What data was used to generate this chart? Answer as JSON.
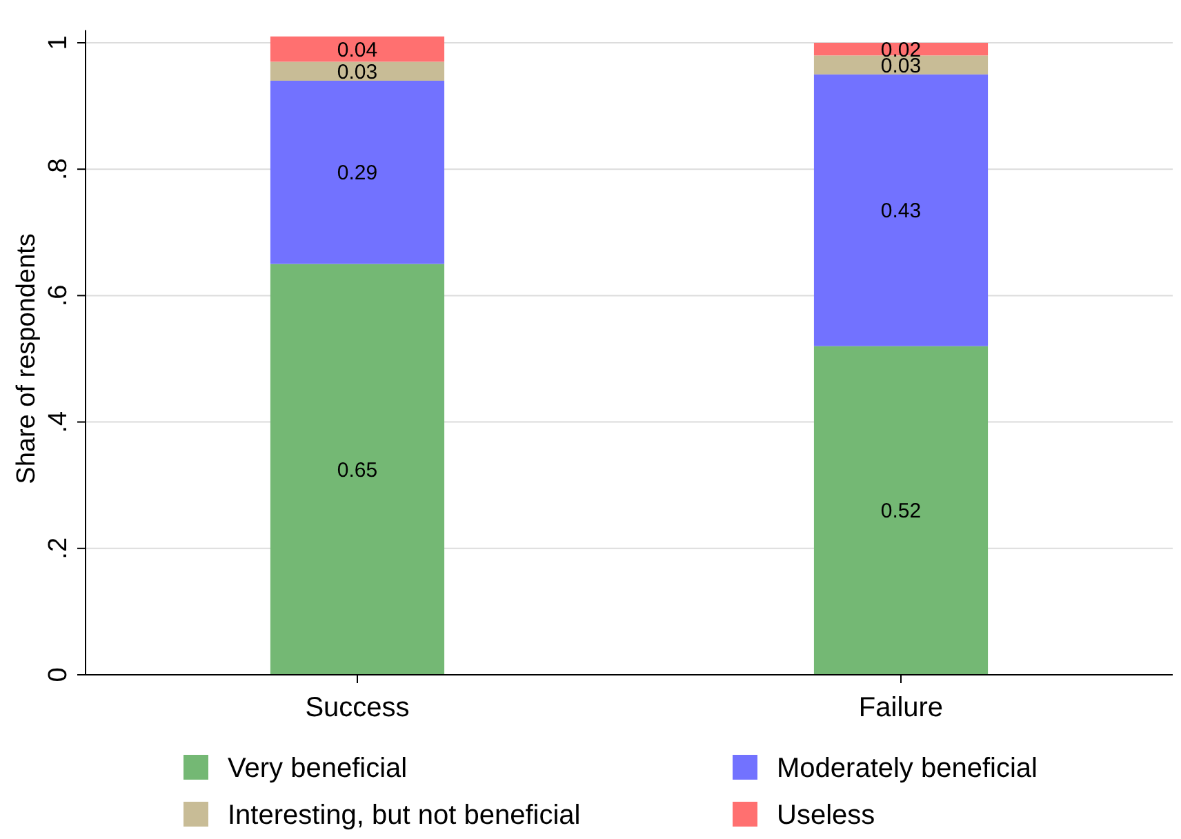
{
  "chart_data": {
    "type": "bar",
    "stacked": true,
    "ylabel": "Share of respondents",
    "categories": [
      "Success",
      "Failure"
    ],
    "series": [
      {
        "name": "Very beneficial",
        "color": "#74b874",
        "values": [
          0.65,
          0.52
        ]
      },
      {
        "name": "Moderately beneficial",
        "color": "#7272ff",
        "values": [
          0.29,
          0.43
        ]
      },
      {
        "name": "Interesting, but not beneficial",
        "color": "#c8bc96",
        "values": [
          0.03,
          0.03
        ]
      },
      {
        "name": "Useless",
        "color": "#ff7070",
        "values": [
          0.04,
          0.02
        ]
      }
    ],
    "ylim": [
      0,
      1.02
    ],
    "yticks": [
      0,
      {
        "value": 0.2,
        "label": ".2"
      },
      {
        "value": 0.4,
        "label": ".4"
      },
      {
        "value": 0.6,
        "label": ".6"
      },
      {
        "value": 0.8,
        "label": ".8"
      },
      1
    ],
    "grid": "y",
    "legend": "bottom",
    "data_labels": true
  }
}
